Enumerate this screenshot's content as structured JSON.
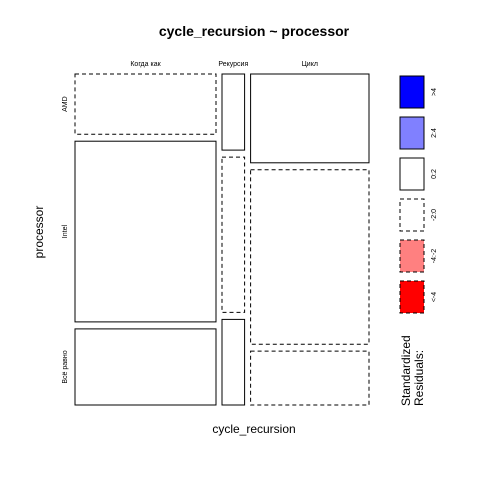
{
  "chart_data": {
    "type": "mosaic",
    "title": "cycle_recursion ~ processor",
    "xlabel": "cycle_recursion",
    "ylabel": "processor",
    "x_categories": [
      "Когда как",
      "Рекурсия",
      "Цикл"
    ],
    "y_categories": [
      "AMD",
      "Intel",
      "Всё равно"
    ],
    "x_proportions": [
      0.5,
      0.08,
      0.42
    ],
    "cells": [
      {
        "x": "Когда как",
        "y": "AMD",
        "proportion": 0.19,
        "residual_level": "-2:0"
      },
      {
        "x": "Когда как",
        "y": "Intel",
        "proportion": 0.57,
        "residual_level": "0:2"
      },
      {
        "x": "Когда как",
        "y": "Всё равно",
        "proportion": 0.24,
        "residual_level": "0:2"
      },
      {
        "x": "Рекурсия",
        "y": "AMD",
        "proportion": 0.24,
        "residual_level": "0:2"
      },
      {
        "x": "Рекурсия",
        "y": "Intel",
        "proportion": 0.49,
        "residual_level": "-2:0"
      },
      {
        "x": "Рекурсия",
        "y": "Всё равно",
        "proportion": 0.27,
        "residual_level": "0:2"
      },
      {
        "x": "Цикл",
        "y": "AMD",
        "proportion": 0.28,
        "residual_level": "0:2"
      },
      {
        "x": "Цикл",
        "y": "Intel",
        "proportion": 0.55,
        "residual_level": "-2:0"
      },
      {
        "x": "Цикл",
        "y": "Всё равно",
        "proportion": 0.17,
        "residual_level": "-2:0"
      }
    ],
    "legend": {
      "title_line1": "Standardized",
      "title_line2": "Residuals:",
      "placement": "right",
      "entries": [
        {
          "label": ">4",
          "fill": "#0000ff",
          "stroke_style": "solid"
        },
        {
          "label": "2:4",
          "fill": "#8080ff",
          "stroke_style": "solid"
        },
        {
          "label": "0:2",
          "fill": "#ffffff",
          "stroke_style": "solid"
        },
        {
          "label": "-2:0",
          "fill": "#ffffff",
          "stroke_style": "dashed"
        },
        {
          "label": "-4:-2",
          "fill": "#ff8080",
          "stroke_style": "dashed"
        },
        {
          "label": "<-4",
          "fill": "#ff0000",
          "stroke_style": "dashed"
        }
      ]
    }
  }
}
